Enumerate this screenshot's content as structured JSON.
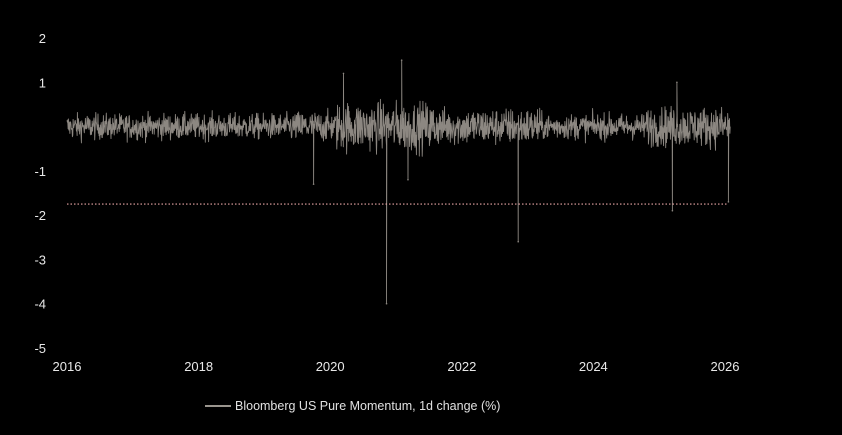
{
  "chart_data": {
    "type": "line",
    "title": "",
    "xlabel": "",
    "ylabel": "",
    "series": [
      {
        "name": "Bloomberg US Pure Momentum, 1d change (%)",
        "color": "#8c8781",
        "notable_points": [
          {
            "date": "2019-10-01",
            "value": -1.3
          },
          {
            "date": "2020-03-15",
            "value": 1.2
          },
          {
            "date": "2020-11-09",
            "value": -4.0
          },
          {
            "date": "2021-02-01",
            "value": 1.5
          },
          {
            "date": "2021-03-08",
            "value": -1.2
          },
          {
            "date": "2022-11-10",
            "value": -2.6
          },
          {
            "date": "2025-03-15",
            "value": -1.9
          },
          {
            "date": "2025-04-09",
            "value": 1.0
          },
          {
            "date": "2026-01-20",
            "value": -1.7
          }
        ],
        "typical_range": [
          -0.6,
          0.6
        ]
      }
    ],
    "reference_line": {
      "value": -1.75,
      "color": "#e8a5a5",
      "style": "dotted"
    },
    "x_ticks": [
      "2016",
      "2018",
      "2020",
      "2022",
      "2024",
      "2026"
    ],
    "y_ticks": [
      "2",
      "1",
      "-1",
      "-2",
      "-3",
      "-4",
      "-5"
    ],
    "xlim": [
      "2016-01-01",
      "2026-01-01"
    ],
    "ylim": [
      -5,
      2
    ],
    "grid": false,
    "legend_position": "bottom-center",
    "background": "#000000",
    "tick_color": "#e8e8e8"
  }
}
